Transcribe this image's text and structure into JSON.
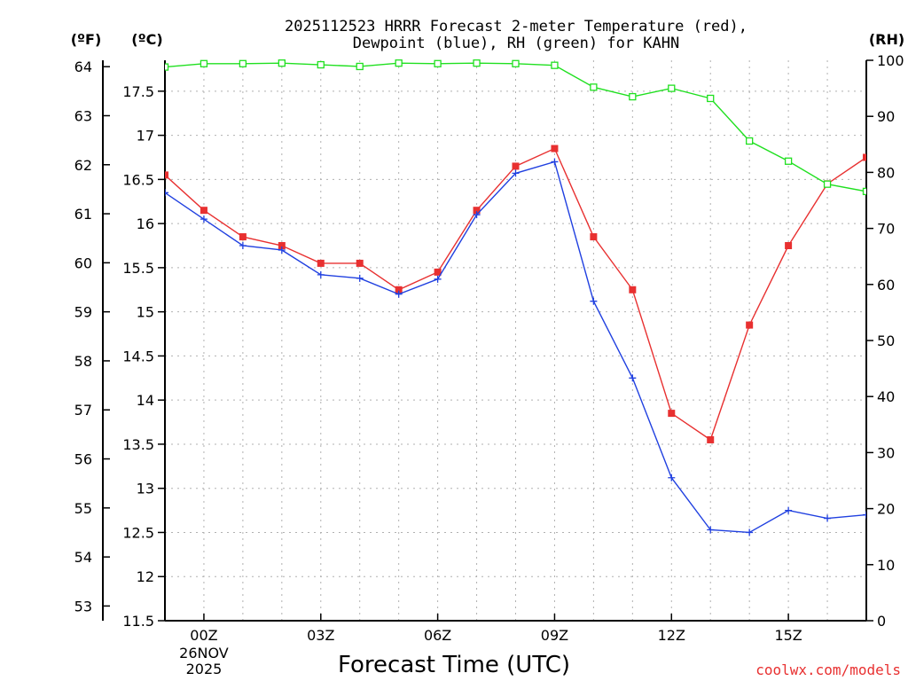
{
  "chart_data": {
    "type": "line",
    "title_line1": "2025112523 HRRR Forecast 2-meter Temperature (red),",
    "title_line2": "Dewpoint (blue), RH (green) for KAHN",
    "left_unit_f": "(ºF)",
    "left_unit_c": "(ºC)",
    "right_unit": "(RH)",
    "xlabel": "Forecast Time (UTC)",
    "credit": "coolwx.com/models",
    "x_ticks": [
      {
        "hour": 0,
        "label": "00Z",
        "sub1": "26NOV",
        "sub2": "2025"
      },
      {
        "hour": 3,
        "label": "03Z"
      },
      {
        "hour": 6,
        "label": "06Z"
      },
      {
        "hour": 9,
        "label": "09Z"
      },
      {
        "hour": 12,
        "label": "12Z"
      },
      {
        "hour": 15,
        "label": "15Z"
      }
    ],
    "xlim": [
      -1,
      17
    ],
    "ylim_c": [
      11.5,
      17.85
    ],
    "ylim_f": [
      52.7,
      64.13
    ],
    "ylim_rh": [
      0,
      100
    ],
    "c_ticks": [
      "11.5",
      "12",
      "12.5",
      "13",
      "13.5",
      "14",
      "14.5",
      "15",
      "15.5",
      "16",
      "16.5",
      "17",
      "17.5"
    ],
    "f_ticks": [
      "53",
      "54",
      "55",
      "56",
      "57",
      "58",
      "59",
      "60",
      "61",
      "62",
      "63",
      "64"
    ],
    "rh_ticks": [
      "0",
      "10",
      "20",
      "30",
      "40",
      "50",
      "60",
      "70",
      "80",
      "90",
      "100"
    ],
    "hours": [
      -1,
      0,
      1,
      2,
      3,
      4,
      5,
      6,
      7,
      8,
      9,
      10,
      11,
      12,
      13,
      14,
      15,
      16,
      17
    ],
    "series": [
      {
        "name": "Temperature",
        "color": "#e83030",
        "marker": "filled-square",
        "units": "C",
        "values": [
          16.55,
          16.15,
          15.85,
          15.75,
          15.55,
          15.55,
          15.25,
          15.45,
          16.15,
          16.65,
          16.85,
          15.85,
          15.25,
          13.85,
          13.55,
          14.85,
          15.75,
          16.45,
          16.75
        ]
      },
      {
        "name": "Dewpoint",
        "color": "#2040e0",
        "marker": "plus",
        "units": "C",
        "values": [
          16.35,
          16.05,
          15.75,
          15.7,
          15.42,
          15.38,
          15.2,
          15.37,
          16.1,
          16.57,
          16.7,
          15.12,
          14.25,
          13.12,
          12.53,
          12.5,
          12.75,
          12.66,
          12.7
        ]
      },
      {
        "name": "RH",
        "color": "#20e020",
        "marker": "open-square",
        "units": "%",
        "values": [
          98.8,
          99.4,
          99.4,
          99.5,
          99.2,
          98.9,
          99.5,
          99.4,
          99.5,
          99.4,
          99.1,
          95.2,
          93.5,
          95.0,
          93.2,
          85.6,
          82.0,
          77.9,
          76.6
        ]
      }
    ]
  },
  "colors": {
    "background": "#ffffff",
    "axis": "#000000",
    "grid": "#b0b0b0",
    "credit": "#e83030"
  }
}
